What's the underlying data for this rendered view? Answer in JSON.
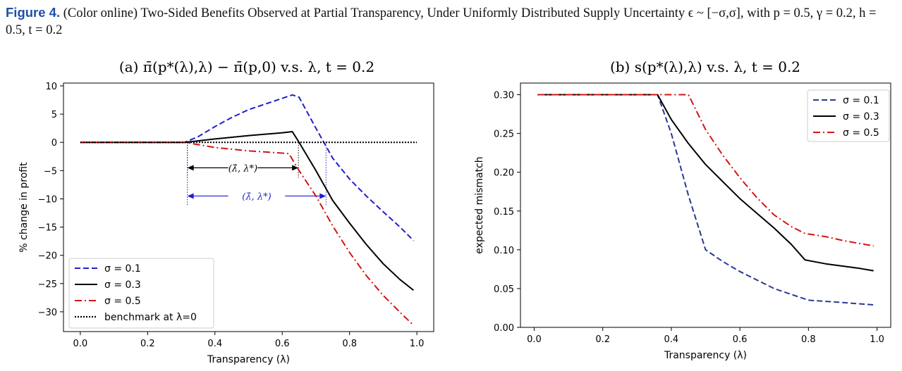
{
  "caption": {
    "label": "Figure 4.",
    "text": "(Color online) Two-Sided Benefits Observed at Partial Transparency, Under Uniformly Distributed Supply Uncertainty ϵ ~ [−σ,σ], with p = 0.5, γ = 0.2, h = 0.5, t = 0.2"
  },
  "colors": {
    "blue": "#1f1fcc",
    "black": "#000000",
    "red": "#d41414",
    "navy": "#2b3a8f",
    "caption": "#1f4fa6"
  },
  "chart_data": [
    {
      "type": "line",
      "title": "(a) π̄(p*(λ),λ) − π̄(p,0) v.s. λ, t = 0.2",
      "xlabel": "Transparency (λ)",
      "ylabel": "% change in profit",
      "xlim": [
        -0.05,
        1.05
      ],
      "ylim": [
        -33.5,
        10.5
      ],
      "xticks": [
        "0.0",
        "0.2",
        "0.4",
        "0.6",
        "0.8",
        "1.0"
      ],
      "xtick_values": [
        0,
        0.2,
        0.4,
        0.6,
        0.8,
        1.0
      ],
      "yticks": [
        "10",
        "5",
        "0",
        "−5",
        "−10",
        "−15",
        "−20",
        "−25",
        "−30"
      ],
      "ytick_values": [
        10,
        5,
        0,
        -5,
        -10,
        -15,
        -20,
        -25,
        -30
      ],
      "legend_position": "lower-left",
      "series": [
        {
          "name": "σ = 0.1",
          "style": "dashed",
          "color": "#1f1fcc",
          "x": [
            0.0,
            0.31,
            0.35,
            0.4,
            0.45,
            0.5,
            0.55,
            0.6,
            0.63,
            0.65,
            0.7,
            0.75,
            0.8,
            0.85,
            0.9,
            0.95,
            0.99
          ],
          "y": [
            0,
            0,
            1.0,
            2.8,
            4.4,
            5.8,
            6.8,
            7.8,
            8.4,
            8.0,
            2.5,
            -2.8,
            -6.5,
            -9.5,
            -12.3,
            -15.0,
            -17.4
          ]
        },
        {
          "name": "σ = 0.3",
          "style": "solid",
          "color": "#000000",
          "x": [
            0.0,
            0.31,
            0.4,
            0.5,
            0.6,
            0.63,
            0.65,
            0.7,
            0.75,
            0.8,
            0.85,
            0.9,
            0.95,
            0.99
          ],
          "y": [
            0,
            0,
            0.6,
            1.2,
            1.7,
            1.9,
            0,
            -5.0,
            -10.3,
            -14.3,
            -18.1,
            -21.5,
            -24.3,
            -26.2
          ]
        },
        {
          "name": "σ = 0.5",
          "style": "dashdot",
          "color": "#d41414",
          "x": [
            0.0,
            0.31,
            0.4,
            0.5,
            0.6,
            0.62,
            0.65,
            0.7,
            0.75,
            0.8,
            0.85,
            0.9,
            0.95,
            0.99
          ],
          "y": [
            0,
            0,
            -0.9,
            -1.5,
            -1.9,
            -2.0,
            -5.0,
            -9.5,
            -14.8,
            -19.5,
            -23.6,
            -27.1,
            -30.1,
            -32.4
          ]
        },
        {
          "name": "benchmark at λ=0",
          "style": "dotted",
          "color": "#000000",
          "x": [
            0.0,
            1.0
          ],
          "y": [
            0,
            0
          ]
        }
      ],
      "annotations": [
        {
          "text": "(λ̂, λ*)",
          "color": "#000000",
          "x_from": 0.318,
          "x_to": 0.648,
          "y": -4.5
        },
        {
          "text": "(λ̂, λ*)",
          "color": "#1f1fcc",
          "x_from": 0.318,
          "x_to": 0.73,
          "y": -9.5
        }
      ]
    },
    {
      "type": "line",
      "title": "(b) s(p*(λ),λ) v.s. λ, t = 0.2",
      "xlabel": "Transparency (λ)",
      "ylabel": "expected mismatch",
      "xlim": [
        -0.04,
        1.04
      ],
      "ylim": [
        0.0,
        0.315
      ],
      "xticks": [
        "0.0",
        "0.2",
        "0.4",
        "0.6",
        "0.8",
        "1.0"
      ],
      "xtick_values": [
        0,
        0.2,
        0.4,
        0.6,
        0.8,
        1.0
      ],
      "yticks": [
        "0.30",
        "0.25",
        "0.20",
        "0.15",
        "0.10",
        "0.05",
        "0.00"
      ],
      "ytick_values": [
        0.3,
        0.25,
        0.2,
        0.15,
        0.1,
        0.05,
        0.0
      ],
      "legend_position": "top-right",
      "series": [
        {
          "name": "σ = 0.1",
          "style": "dashed",
          "color": "#2b3a8f",
          "x": [
            0.01,
            0.36,
            0.4,
            0.45,
            0.5,
            0.55,
            0.6,
            0.7,
            0.8,
            0.9,
            0.99
          ],
          "y": [
            0.3,
            0.3,
            0.25,
            0.17,
            0.1,
            0.085,
            0.072,
            0.05,
            0.035,
            0.032,
            0.029
          ]
        },
        {
          "name": "σ = 0.3",
          "style": "solid",
          "color": "#000000",
          "x": [
            0.01,
            0.36,
            0.4,
            0.45,
            0.5,
            0.55,
            0.6,
            0.65,
            0.7,
            0.75,
            0.79,
            0.85,
            0.9,
            0.95,
            0.99
          ],
          "y": [
            0.3,
            0.3,
            0.268,
            0.237,
            0.21,
            0.188,
            0.166,
            0.147,
            0.128,
            0.107,
            0.087,
            0.082,
            0.079,
            0.076,
            0.073
          ]
        },
        {
          "name": "σ = 0.5",
          "style": "dashdot",
          "color": "#d41414",
          "x": [
            0.01,
            0.45,
            0.5,
            0.55,
            0.6,
            0.65,
            0.7,
            0.75,
            0.79,
            0.85,
            0.9,
            0.95,
            0.99
          ],
          "y": [
            0.3,
            0.3,
            0.255,
            0.222,
            0.193,
            0.167,
            0.145,
            0.13,
            0.121,
            0.117,
            0.112,
            0.108,
            0.105
          ]
        }
      ]
    }
  ]
}
